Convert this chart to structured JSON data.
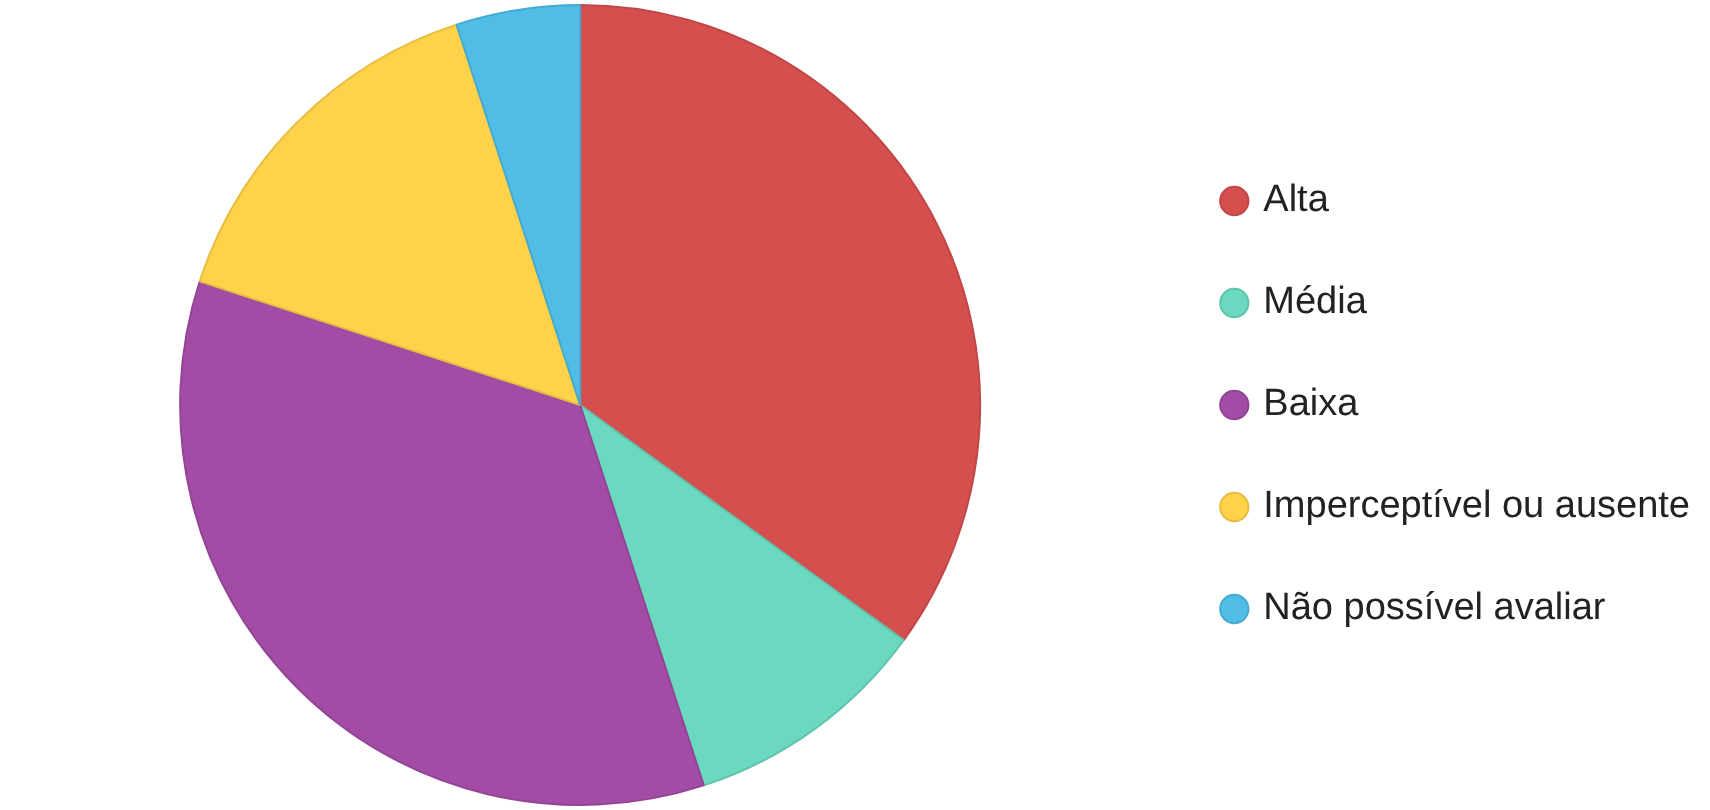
{
  "chart_data": {
    "type": "pie",
    "categories": [
      "Alta",
      "Média",
      "Baixa",
      "Imperceptível ou ausente",
      "Não possível avaliar"
    ],
    "values": [
      35,
      10,
      35,
      15,
      5
    ],
    "colors": [
      "#d64f4f",
      "#6ad9c0",
      "#a34ca6",
      "#ffd24a",
      "#4fbde6"
    ],
    "legend": "right"
  }
}
